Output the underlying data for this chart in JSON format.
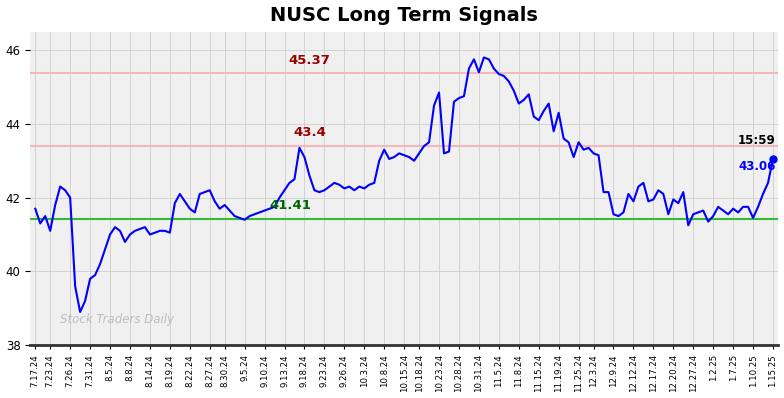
{
  "title": "NUSC Long Term Signals",
  "title_fontsize": 14,
  "title_fontweight": "bold",
  "line_color": "blue",
  "line_width": 1.5,
  "background_color": "#ffffff",
  "grid_color": "#cccccc",
  "ylim": [
    38,
    46.5
  ],
  "yticks": [
    38,
    40,
    42,
    44,
    46
  ],
  "red_line1": 45.37,
  "red_line2": 43.4,
  "green_line": 41.41,
  "red_line_color": "#f5b8b8",
  "green_line_color": "#33bb33",
  "annotation_45_37_color": "#990000",
  "annotation_43_4_color": "#990000",
  "annotation_41_41_color": "#006600",
  "annotation_end_time": "15:59",
  "annotation_end_price": "43.06",
  "watermark": "Stock Traders Daily",
  "x_labels": [
    "7.17.24",
    "7.23.24",
    "7.26.24",
    "7.31.24",
    "8.5.24",
    "8.8.24",
    "8.14.24",
    "8.19.24",
    "8.22.24",
    "8.27.24",
    "8.30.24",
    "9.5.24",
    "9.10.24",
    "9.13.24",
    "9.18.24",
    "9.23.24",
    "9.26.24",
    "10.3.24",
    "10.8.24",
    "10.15.24",
    "10.18.24",
    "10.23.24",
    "10.28.24",
    "10.31.24",
    "11.5.24",
    "11.8.24",
    "11.15.24",
    "11.19.24",
    "11.25.24",
    "12.3.24",
    "12.9.24",
    "12.12.24",
    "12.17.24",
    "12.20.24",
    "12.27.24",
    "1.2.25",
    "1.7.25",
    "1.10.25",
    "1.15.25"
  ],
  "prices": [
    41.7,
    41.3,
    41.5,
    41.1,
    41.8,
    42.3,
    42.2,
    42.0,
    39.6,
    38.9,
    39.2,
    39.8,
    39.9,
    40.2,
    40.6,
    41.0,
    41.2,
    41.1,
    40.8,
    41.0,
    41.1,
    41.15,
    41.2,
    41.0,
    41.05,
    41.1,
    41.1,
    41.05,
    41.85,
    42.1,
    41.9,
    41.7,
    41.6,
    42.1,
    42.15,
    42.2,
    41.9,
    41.7,
    41.8,
    41.65,
    41.5,
    41.45,
    41.4,
    41.5,
    41.55,
    41.6,
    41.65,
    41.7,
    41.75,
    42.0,
    42.2,
    42.4,
    42.5,
    43.35,
    43.1,
    42.6,
    42.2,
    42.15,
    42.2,
    42.3,
    42.4,
    42.35,
    42.25,
    42.3,
    42.2,
    42.3,
    42.25,
    42.35,
    42.4,
    43.0,
    43.3,
    43.05,
    43.1,
    43.2,
    43.15,
    43.1,
    43.0,
    43.2,
    43.4,
    43.5,
    44.5,
    44.85,
    43.2,
    43.25,
    44.6,
    44.7,
    44.75,
    45.5,
    45.75,
    45.4,
    45.8,
    45.75,
    45.5,
    45.35,
    45.3,
    45.15,
    44.9,
    44.55,
    44.65,
    44.8,
    44.2,
    44.1,
    44.35,
    44.55,
    43.8,
    44.3,
    43.6,
    43.5,
    43.1,
    43.5,
    43.3,
    43.35,
    43.2,
    43.15,
    42.15,
    42.15,
    41.55,
    41.5,
    41.6,
    42.1,
    41.9,
    42.3,
    42.4,
    41.9,
    41.95,
    42.2,
    42.1,
    41.55,
    41.95,
    41.85,
    42.15,
    41.25,
    41.55,
    41.6,
    41.65,
    41.35,
    41.5,
    41.75,
    41.65,
    41.55,
    41.7,
    41.6,
    41.75,
    41.75,
    41.45,
    41.75,
    42.1,
    42.4,
    43.06
  ]
}
